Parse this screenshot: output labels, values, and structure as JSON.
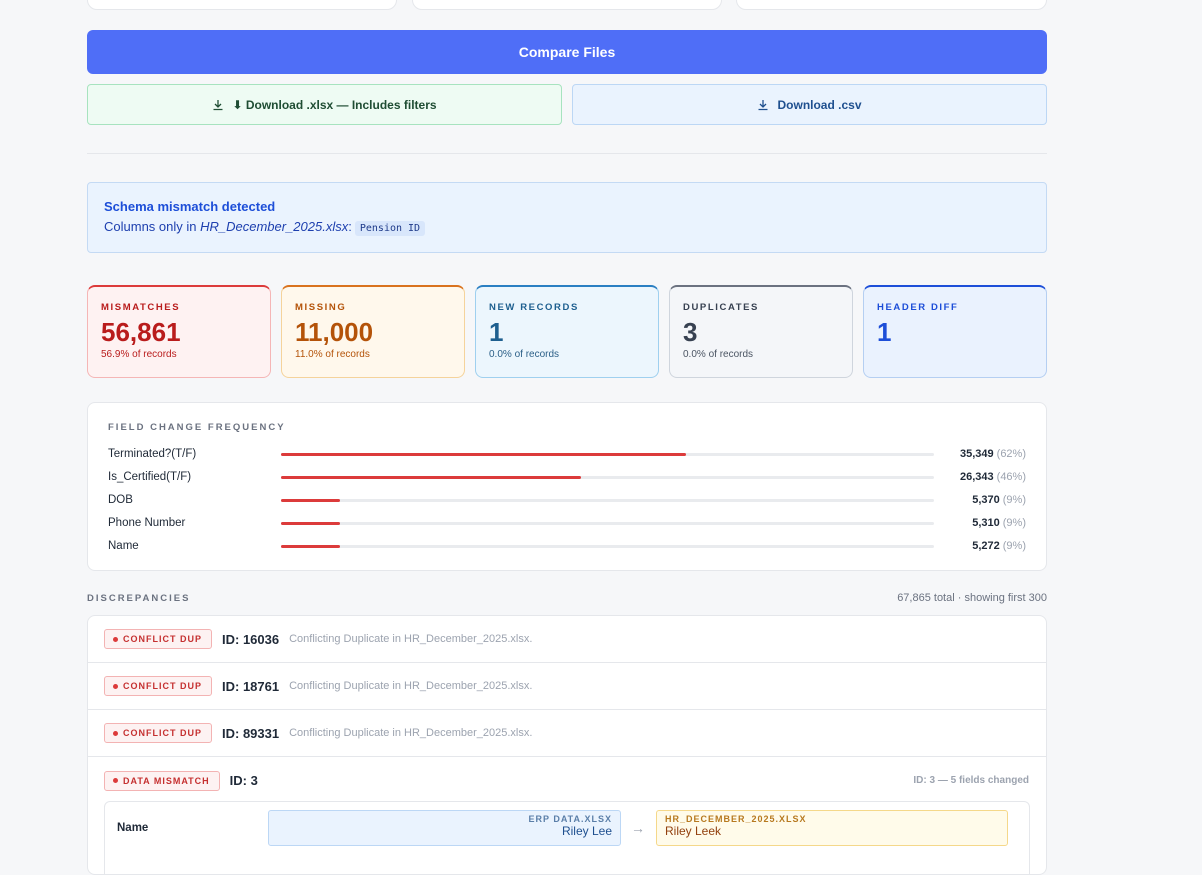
{
  "actions": {
    "compare_label": "Compare Files",
    "download_xlsx_label": "⬇ Download .xlsx — Includes filters",
    "download_csv_label": "Download .csv"
  },
  "schema": {
    "title": "Schema mismatch detected",
    "prefix": "Columns only in ",
    "file": "HR_December_2025.xlsx",
    "suffix": ":",
    "column": "Pension ID"
  },
  "stats": {
    "mismatches": {
      "label": "MISMATCHES",
      "value": "56,861",
      "sub": "56.9% of records"
    },
    "missing": {
      "label": "MISSING",
      "value": "11,000",
      "sub": "11.0% of records"
    },
    "new_records": {
      "label": "NEW RECORDS",
      "value": "1",
      "sub": "0.0% of records"
    },
    "duplicates": {
      "label": "DUPLICATES",
      "value": "3",
      "sub": "0.0% of records"
    },
    "header_diff": {
      "label": "HEADER DIFF",
      "value": "1"
    }
  },
  "field_freq": {
    "title": "FIELD CHANGE FREQUENCY",
    "rows": [
      {
        "name": "Terminated?(T/F)",
        "count": "35,349",
        "pct": "(62%)",
        "fraction": 0.62
      },
      {
        "name": "Is_Certified(T/F)",
        "count": "26,343",
        "pct": "(46%)",
        "fraction": 0.46
      },
      {
        "name": "DOB",
        "count": "5,370",
        "pct": "(9%)",
        "fraction": 0.09
      },
      {
        "name": "Phone Number",
        "count": "5,310",
        "pct": "(9%)",
        "fraction": 0.09
      },
      {
        "name": "Name",
        "count": "5,272",
        "pct": "(9%)",
        "fraction": 0.09
      }
    ]
  },
  "discrepancies": {
    "title": "DISCREPANCIES",
    "count_text": "67,865 total · showing first 300",
    "rows": [
      {
        "badge": "CONFLICT DUP",
        "id": "ID: 16036",
        "desc": "Conflicting Duplicate in HR_December_2025.xlsx."
      },
      {
        "badge": "CONFLICT DUP",
        "id": "ID: 18761",
        "desc": "Conflicting Duplicate in HR_December_2025.xlsx."
      },
      {
        "badge": "CONFLICT DUP",
        "id": "ID: 89331",
        "desc": "Conflicting Duplicate in HR_December_2025.xlsx."
      },
      {
        "badge": "DATA MISMATCH",
        "id": "ID: 3",
        "right": "ID: 3 — 5 fields changed"
      }
    ],
    "detail": {
      "field": "Name",
      "left_file": "ERP DATA.XLSX",
      "left_value": "Riley Lee",
      "arrow": "→",
      "right_file": "HR_DECEMBER_2025.XLSX",
      "right_value": "Riley Leek"
    }
  }
}
